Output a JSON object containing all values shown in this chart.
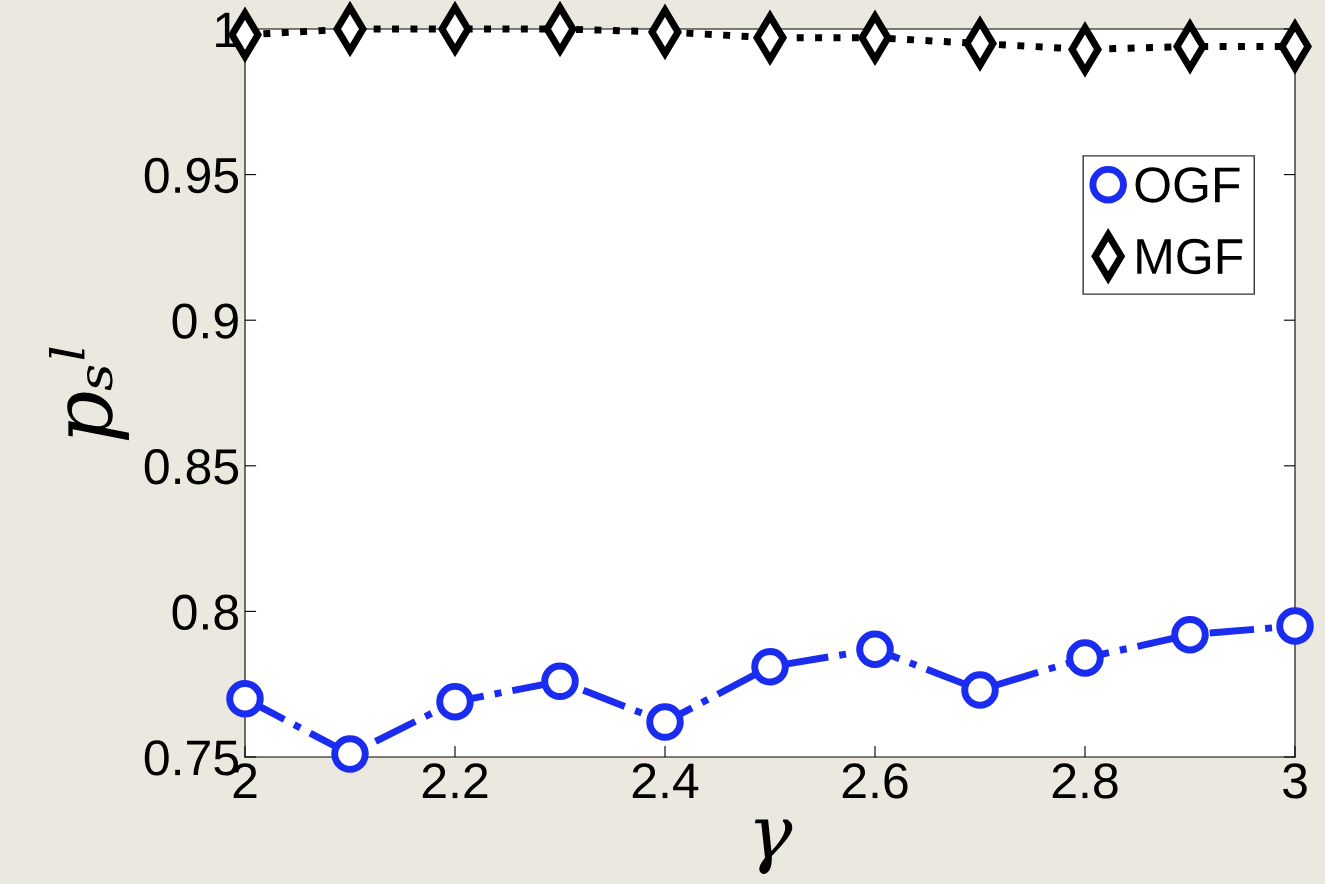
{
  "chart_data": {
    "type": "line",
    "xlabel": "γ",
    "ylabel": "pₛˡ",
    "x": [
      2,
      2.1,
      2.2,
      2.3,
      2.4,
      2.5,
      2.6,
      2.7,
      2.8,
      2.9,
      3
    ],
    "series": [
      {
        "name": "OGF",
        "color": "#1a2cf0",
        "marker": "circle",
        "line_style": "dashdot",
        "values": [
          0.77,
          0.751,
          0.769,
          0.776,
          0.762,
          0.781,
          0.787,
          0.773,
          0.784,
          0.792,
          0.795
        ]
      },
      {
        "name": "MGF",
        "color": "#000000",
        "marker": "diamond",
        "line_style": "dotted",
        "values": [
          0.998,
          1.0,
          1.0,
          1.0,
          0.999,
          0.997,
          0.997,
          0.995,
          0.993,
          0.994,
          0.994
        ]
      }
    ],
    "xlim": [
      2,
      3
    ],
    "xticks": [
      2,
      2.2,
      2.4,
      2.6,
      2.8,
      3
    ],
    "ylim": [
      0.75,
      1
    ],
    "yticks": [
      0.75,
      0.8,
      0.85,
      0.9,
      0.95,
      1
    ],
    "grid": false,
    "legend": "top right"
  }
}
